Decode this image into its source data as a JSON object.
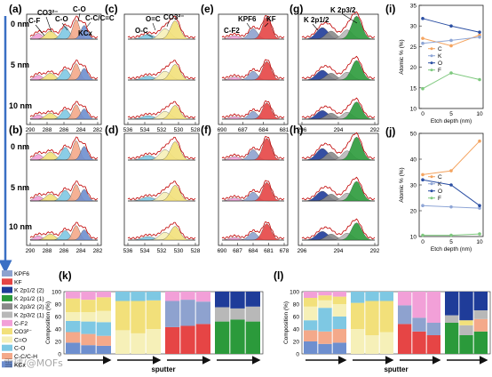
{
  "colors": {
    "C": "#f4a460",
    "K": "#8fa6d6",
    "O": "#2b4fa3",
    "F": "#7fc97f",
    "KPF6": "#8ea2cf",
    "KF": "#e64545",
    "K2p12_2": "#1f3c99",
    "K2p12_1": "#2b9a3b",
    "K2p32_2": "#8a8a8a",
    "K2p32_1": "#b8b8b8",
    "CF2": "#f2a0d8",
    "CO3": "#f2e07a",
    "CeqO": "#f6f0b8",
    "CO": "#7ec8e3",
    "CCCH": "#f4a98a",
    "KCx": "#6e8fcf",
    "envelope": "#c00000"
  },
  "depth_labels": [
    "0 nm",
    "5 nm",
    "10 nm"
  ],
  "panels": {
    "a": "(a)",
    "b": "(b)",
    "c": "(c)",
    "d": "(d)",
    "e": "(e)",
    "f": "(f)",
    "g": "(g)",
    "h": "(h)",
    "i": "(i)",
    "j": "(j)",
    "k": "(k)",
    "l": "(l)"
  },
  "annotations": {
    "cf": "C-F",
    "co3": "CO3²⁻",
    "co_a": "C-O",
    "co_b": "C-O",
    "cc": "C-C/C=C",
    "kcx": "KCx",
    "oeqc": "O=C",
    "co3_c": "CO3²⁻",
    "oc": "O-C",
    "kpf6": "KPF6",
    "kf": "KF",
    "cf2": "C-F2",
    "k2p32": "K 2p3/2",
    "k2p12": "K 2p1/2"
  },
  "ticks": {
    "a": [
      "290",
      "288",
      "286",
      "284",
      "282"
    ],
    "c": [
      "536",
      "534",
      "532",
      "530",
      "528"
    ],
    "e": [
      "690",
      "687",
      "684",
      "681"
    ],
    "g": [
      "296",
      "294",
      "292"
    ],
    "b": [
      "290",
      "288",
      "286",
      "284",
      "282"
    ],
    "d": [
      "536",
      "534",
      "532",
      "530",
      "528"
    ],
    "f": [
      "690",
      "687",
      "684",
      "681",
      "678"
    ],
    "h": [
      "296",
      "294",
      "292"
    ]
  },
  "legend_left": [
    "KPF6",
    "KF",
    "K 2p1/2 (2)",
    "K 2p1/2 (1)",
    "K 2p3/2 (2)",
    "K 2p3/2 (1)",
    "C-F2",
    "CO3²⁻",
    "C=O",
    "C-O",
    "C-C/C-H",
    "KCx"
  ],
  "sputter_label": "sputter",
  "watermark": "雪球/@MOFs",
  "chart_data": [
    {
      "type": "line",
      "title": "(i)",
      "xlabel": "Etch depth (nm)",
      "ylabel": "Atomic % (%)",
      "x": [
        0,
        5,
        10
      ],
      "xticks": [
        "0",
        "5",
        "10"
      ],
      "ylim": [
        10,
        35
      ],
      "yticks": [
        "10",
        "15",
        "20",
        "25",
        "30",
        "35"
      ],
      "legend": "right",
      "series": [
        {
          "name": "C",
          "values": [
            27.0,
            25.2,
            27.8
          ]
        },
        {
          "name": "K",
          "values": [
            25.8,
            26.5,
            27.3
          ]
        },
        {
          "name": "O",
          "values": [
            31.8,
            30.0,
            28.5
          ]
        },
        {
          "name": "F",
          "values": [
            14.8,
            18.6,
            17.0
          ]
        }
      ]
    },
    {
      "type": "line",
      "title": "(j)",
      "xlabel": "Etch depth (nm)",
      "ylabel": "Atomic % (%)",
      "x": [
        0,
        5,
        10
      ],
      "xticks": [
        "0",
        "5",
        "10"
      ],
      "ylim": [
        10,
        50
      ],
      "yticks": [
        "10",
        "20",
        "30",
        "40",
        "50"
      ],
      "legend": "right",
      "series": [
        {
          "name": "C",
          "values": [
            34.0,
            35.5,
            47.0
          ]
        },
        {
          "name": "K",
          "values": [
            22.0,
            21.5,
            21.0
          ]
        },
        {
          "name": "O",
          "values": [
            32.0,
            30.0,
            22.0
          ]
        },
        {
          "name": "F",
          "values": [
            10.5,
            10.5,
            11.0
          ]
        }
      ]
    },
    {
      "type": "bar",
      "title": "(k)",
      "ylabel": "Composition (%)",
      "ylim": [
        0,
        100
      ],
      "yticks": [
        "0",
        "20",
        "40",
        "60",
        "80",
        "100"
      ],
      "xlabel": "sputter",
      "stacked": true,
      "groups": [
        [
          [
            [
              "KCx",
              18
            ],
            [
              "CCCH",
              17
            ],
            [
              "CO",
              18
            ],
            [
              "CeqO",
              14
            ],
            [
              "CO3",
              22
            ],
            [
              "CF2",
              11
            ]
          ],
          [
            [
              "KCx",
              14
            ],
            [
              "CCCH",
              18
            ],
            [
              "CO",
              20
            ],
            [
              "CeqO",
              15
            ],
            [
              "CO3",
              20
            ],
            [
              "CF2",
              13
            ]
          ],
          [
            [
              "KCx",
              13
            ],
            [
              "CCCH",
              16
            ],
            [
              "CO",
              22
            ],
            [
              "CeqO",
              18
            ],
            [
              "CO3",
              22
            ],
            [
              "CF2",
              9
            ]
          ]
        ],
        [
          [
            [
              "CeqO",
              38
            ],
            [
              "CO3",
              47
            ],
            [
              "CO",
              15
            ]
          ],
          [
            [
              "CeqO",
              33
            ],
            [
              "CO3",
              52
            ],
            [
              "CO",
              15
            ]
          ],
          [
            [
              "CeqO",
              40
            ],
            [
              "CO3",
              46
            ],
            [
              "CO",
              14
            ]
          ]
        ],
        [
          [
            [
              "KF",
              43
            ],
            [
              "KPF6",
              42
            ],
            [
              "CF2",
              15
            ]
          ],
          [
            [
              "KF",
              45
            ],
            [
              "KPF6",
              42
            ],
            [
              "CF2",
              13
            ]
          ],
          [
            [
              "KF",
              48
            ],
            [
              "KPF6",
              36
            ],
            [
              "CF2",
              16
            ]
          ]
        ],
        [
          [
            [
              "K2p12_1",
              52
            ],
            [
              "K2p32_1",
              23
            ],
            [
              "K2p12_2",
              25
            ]
          ],
          [
            [
              "K2p12_1",
              55
            ],
            [
              "K2p32_1",
              18
            ],
            [
              "K2p12_2",
              27
            ]
          ],
          [
            [
              "K2p12_1",
              52
            ],
            [
              "K2p32_1",
              24
            ],
            [
              "K2p12_2",
              24
            ]
          ]
        ]
      ]
    },
    {
      "type": "bar",
      "title": "(l)",
      "ylabel": "Composition (%)",
      "ylim": [
        0,
        100
      ],
      "yticks": [
        "0",
        "20",
        "40",
        "60",
        "80",
        "100"
      ],
      "xlabel": "sputter",
      "stacked": true,
      "groups": [
        [
          [
            [
              "KCx",
              20
            ],
            [
              "CCCH",
              18
            ],
            [
              "CO",
              16
            ],
            [
              "CeqO",
              22
            ],
            [
              "CO3",
              14
            ],
            [
              "CF2",
              10
            ]
          ],
          [
            [
              "KCx",
              16
            ],
            [
              "CCCH",
              20
            ],
            [
              "CO",
              38
            ],
            [
              "CeqO",
              12
            ],
            [
              "CO3",
              8
            ],
            [
              "CF2",
              6
            ]
          ],
          [
            [
              "KCx",
              18
            ],
            [
              "CCCH",
              22
            ],
            [
              "CO",
              20
            ],
            [
              "CeqO",
              20
            ],
            [
              "CO3",
              12
            ],
            [
              "CF2",
              8
            ]
          ]
        ],
        [
          [
            [
              "CeqO",
              40
            ],
            [
              "CO3",
              42
            ],
            [
              "CO",
              18
            ]
          ],
          [
            [
              "CeqO",
              30
            ],
            [
              "CO3",
              55
            ],
            [
              "CO",
              15
            ]
          ],
          [
            [
              "CeqO",
              35
            ],
            [
              "CO3",
              50
            ],
            [
              "CO",
              15
            ]
          ]
        ],
        [
          [
            [
              "KF",
              48
            ],
            [
              "KPF6",
              30
            ],
            [
              "CF2",
              22
            ]
          ],
          [
            [
              "KF",
              36
            ],
            [
              "KPF6",
              22
            ],
            [
              "CF2",
              42
            ]
          ],
          [
            [
              "KF",
              30
            ],
            [
              "KPF6",
              20
            ],
            [
              "CF2",
              50
            ]
          ]
        ],
        [
          [
            [
              "K2p12_1",
              50
            ],
            [
              "K2p32_1",
              12
            ],
            [
              "K2p12_2",
              38
            ]
          ],
          [
            [
              "K2p12_1",
              30
            ],
            [
              "K2p32_1",
              16
            ],
            [
              "CO3",
              8
            ],
            [
              "K2p12_2",
              46
            ]
          ],
          [
            [
              "K2p12_1",
              36
            ],
            [
              "CCCH",
              20
            ],
            [
              "K2p32_1",
              14
            ],
            [
              "K2p12_2",
              30
            ]
          ]
        ]
      ]
    }
  ]
}
